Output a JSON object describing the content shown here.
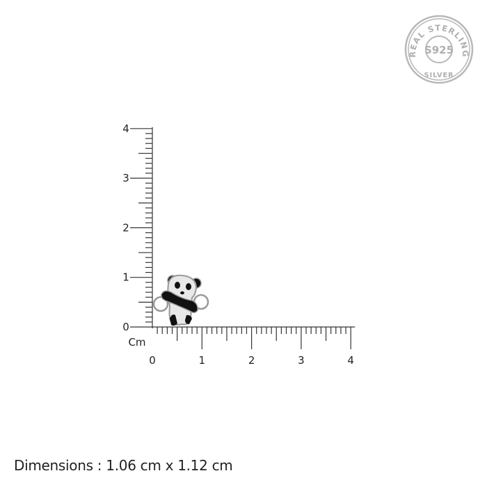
{
  "badge": {
    "top_text": "REAL STERLING",
    "center_text": "S925",
    "bottom_text": "SILVER",
    "color": "#b5b5b5"
  },
  "ruler": {
    "unit_label": "Cm",
    "x_ticks": [
      "0",
      "1",
      "2",
      "3",
      "4"
    ],
    "y_ticks": [
      "0",
      "1",
      "2",
      "3",
      "4"
    ],
    "range_cm": [
      0,
      4
    ],
    "color": "#333333"
  },
  "product": {
    "name": "panda charm",
    "width_cm": 1.06,
    "height_cm": 1.12
  },
  "dimensions_text": "Dimensions : 1.06 cm x 1.12 cm"
}
